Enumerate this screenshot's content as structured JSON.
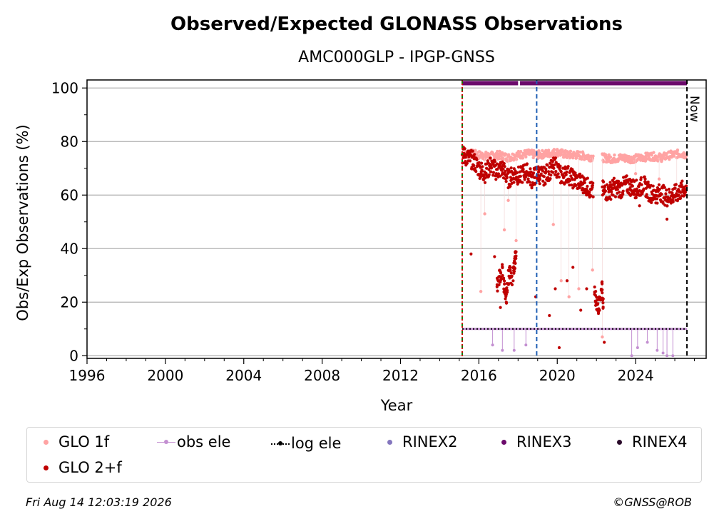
{
  "footer": {
    "timestamp": "Fri Aug 14 12:03:19 2026",
    "credit": "©GNSS@ROB"
  },
  "chart_data": {
    "type": "scatter",
    "title": "Observed/Expected GLONASS Observations",
    "subtitle": "AMC000GLP - IPGP-GNSS",
    "xlabel": "Year",
    "ylabel": "Obs/Exp Observations (%)",
    "xlim": [
      1996,
      2027.6
    ],
    "ylim": [
      -1,
      103
    ],
    "x_ticks": [
      1996,
      2000,
      2004,
      2008,
      2012,
      2016,
      2020,
      2024
    ],
    "x_tick_labels": [
      "1996",
      "2000",
      "2004",
      "2008",
      "2012",
      "2016",
      "2020",
      "2024"
    ],
    "y_ticks": [
      0,
      20,
      40,
      60,
      80,
      100
    ],
    "y_tick_labels": [
      "0",
      "20",
      "40",
      "60",
      "80",
      "100"
    ],
    "grid": "horizontal",
    "legend_position": "below plot",
    "vertical_lines": [
      {
        "x": 2015.15,
        "color": "#008000",
        "style": "dashed"
      },
      {
        "x": 2015.15,
        "color": "#d40000",
        "style": "dotted"
      },
      {
        "x": 2018.95,
        "color": "#1f5fb4",
        "style": "dashed"
      },
      {
        "x": 2026.62,
        "color": "#000000",
        "style": "dashed",
        "label": "Now"
      }
    ],
    "colors": {
      "glo1f": "#ffa3a3",
      "glo2f": "#bf0000",
      "obs_ele": "#c38fd1",
      "log_ele": "#000000",
      "rinex2": "#8476be",
      "rinex3": "#6b0a6b",
      "rinex4": "#2a0a2a"
    },
    "series": [
      {
        "name": "GLO 1f",
        "marker": "dot",
        "segments": [
          {
            "x": [
              2015.15,
              2015.6,
              2016.0,
              2016.5,
              2017.0,
              2017.5,
              2018.0,
              2018.5,
              2019.0,
              2019.5,
              2020.0,
              2020.5,
              2021.0,
              2021.5,
              2021.85
            ],
            "y": [
              75,
              75.5,
              75,
              74.5,
              75,
              74,
              75,
              75.5,
              75,
              75.5,
              76,
              75,
              75,
              74.5,
              74
            ]
          },
          {
            "x": [
              2022.3,
              2022.8,
              2023.3,
              2023.8,
              2024.3,
              2024.8,
              2025.3,
              2025.8,
              2026.3,
              2026.6
            ],
            "y": [
              74,
              73.5,
              74,
              73.5,
              74,
              74.5,
              74,
              75,
              75.5,
              75
            ]
          }
        ],
        "outliers": {
          "x": [
            2016.1,
            2016.3,
            2017.3,
            2017.5,
            2017.9,
            2019.8,
            2020.2,
            2020.6,
            2021.1,
            2021.8,
            2022.3,
            2024.0,
            2025.2,
            2026.1
          ],
          "y": [
            24,
            53,
            47,
            58,
            43,
            49,
            28,
            22,
            25,
            32,
            7,
            68,
            66,
            60
          ]
        }
      },
      {
        "name": "GLO 2+f",
        "marker": "dot",
        "segments": [
          {
            "x": [
              2015.15,
              2015.4,
              2015.7,
              2016.0,
              2016.3,
              2016.6,
              2016.9,
              2017.2,
              2017.5,
              2017.8,
              2018.1,
              2018.4,
              2018.7,
              2019.0,
              2019.3,
              2019.6,
              2019.9,
              2020.2,
              2020.5,
              2020.8,
              2021.1,
              2021.4,
              2021.7,
              2021.85
            ],
            "y": [
              75,
              74,
              73,
              70,
              68,
              71,
              69,
              70,
              66,
              68,
              67,
              69,
              66,
              68,
              67,
              69,
              71,
              67,
              68,
              66,
              65,
              64,
              62,
              61
            ]
          },
          {
            "x": [
              2022.3,
              2022.6,
              2022.9,
              2023.2,
              2023.5,
              2023.8,
              2024.1,
              2024.4,
              2024.7,
              2025.0,
              2025.3,
              2025.6,
              2025.9,
              2026.2,
              2026.6
            ],
            "y": [
              62,
              61,
              63,
              62,
              64,
              63,
              62,
              64,
              61,
              60,
              61,
              59,
              60,
              61,
              63
            ]
          }
        ],
        "clusters": [
          {
            "x": [
              2016.9,
              2017.0,
              2017.1,
              2017.2,
              2017.3,
              2017.4,
              2017.5,
              2017.6,
              2017.7
            ],
            "y": [
              25,
              28,
              30,
              33,
              25,
              22,
              29,
              31,
              27
            ]
          },
          {
            "x": [
              2017.75,
              2017.8,
              2017.85,
              2017.9
            ],
            "y": [
              30,
              33,
              36,
              39
            ]
          },
          {
            "x": [
              2021.9,
              2022.0,
              2022.1,
              2022.2,
              2022.3,
              2022.35
            ],
            "y": [
              24,
              20,
              17,
              22,
              26,
              18
            ]
          }
        ],
        "outliers": {
          "x": [
            2015.6,
            2016.8,
            2017.1,
            2017.4,
            2018.9,
            2019.6,
            2019.9,
            2020.1,
            2020.5,
            2020.8,
            2021.2,
            2021.5,
            2022.4,
            2024.2,
            2025.6
          ],
          "y": [
            38,
            37,
            18,
            20,
            22,
            15,
            25,
            3,
            28,
            33,
            17,
            25,
            5,
            56,
            51
          ]
        }
      },
      {
        "name": "obs ele",
        "marker": "line-dot",
        "segments": [
          {
            "x": [
              2015.15,
              2016.0,
              2018.0,
              2020.0,
              2022.0,
              2023.5,
              2026.62
            ],
            "y": [
              10,
              10,
              10,
              10,
              10,
              10,
              10
            ]
          }
        ],
        "outliers": {
          "x": [
            2016.7,
            2017.2,
            2017.8,
            2018.4,
            2023.8,
            2024.1,
            2024.6,
            2025.1,
            2025.4,
            2025.6,
            2025.9
          ],
          "y": [
            4,
            2,
            2,
            4,
            0,
            3,
            5,
            2,
            1,
            0,
            0
          ]
        }
      },
      {
        "name": "log ele",
        "marker": "dotted-line",
        "segments": [
          {
            "x": [
              2015.15,
              2026.62
            ],
            "y": [
              10,
              10
            ]
          }
        ]
      },
      {
        "name": "RINEX2",
        "marker": "dot",
        "segments": []
      },
      {
        "name": "RINEX3",
        "marker": "dot",
        "segments": [
          {
            "x": [
              2015.15,
              2018.0
            ],
            "y": [
              101.8,
              101.8
            ]
          },
          {
            "x": [
              2018.1,
              2026.62
            ],
            "y": [
              101.8,
              101.8
            ]
          }
        ]
      },
      {
        "name": "RINEX4",
        "marker": "dot",
        "segments": []
      }
    ]
  }
}
